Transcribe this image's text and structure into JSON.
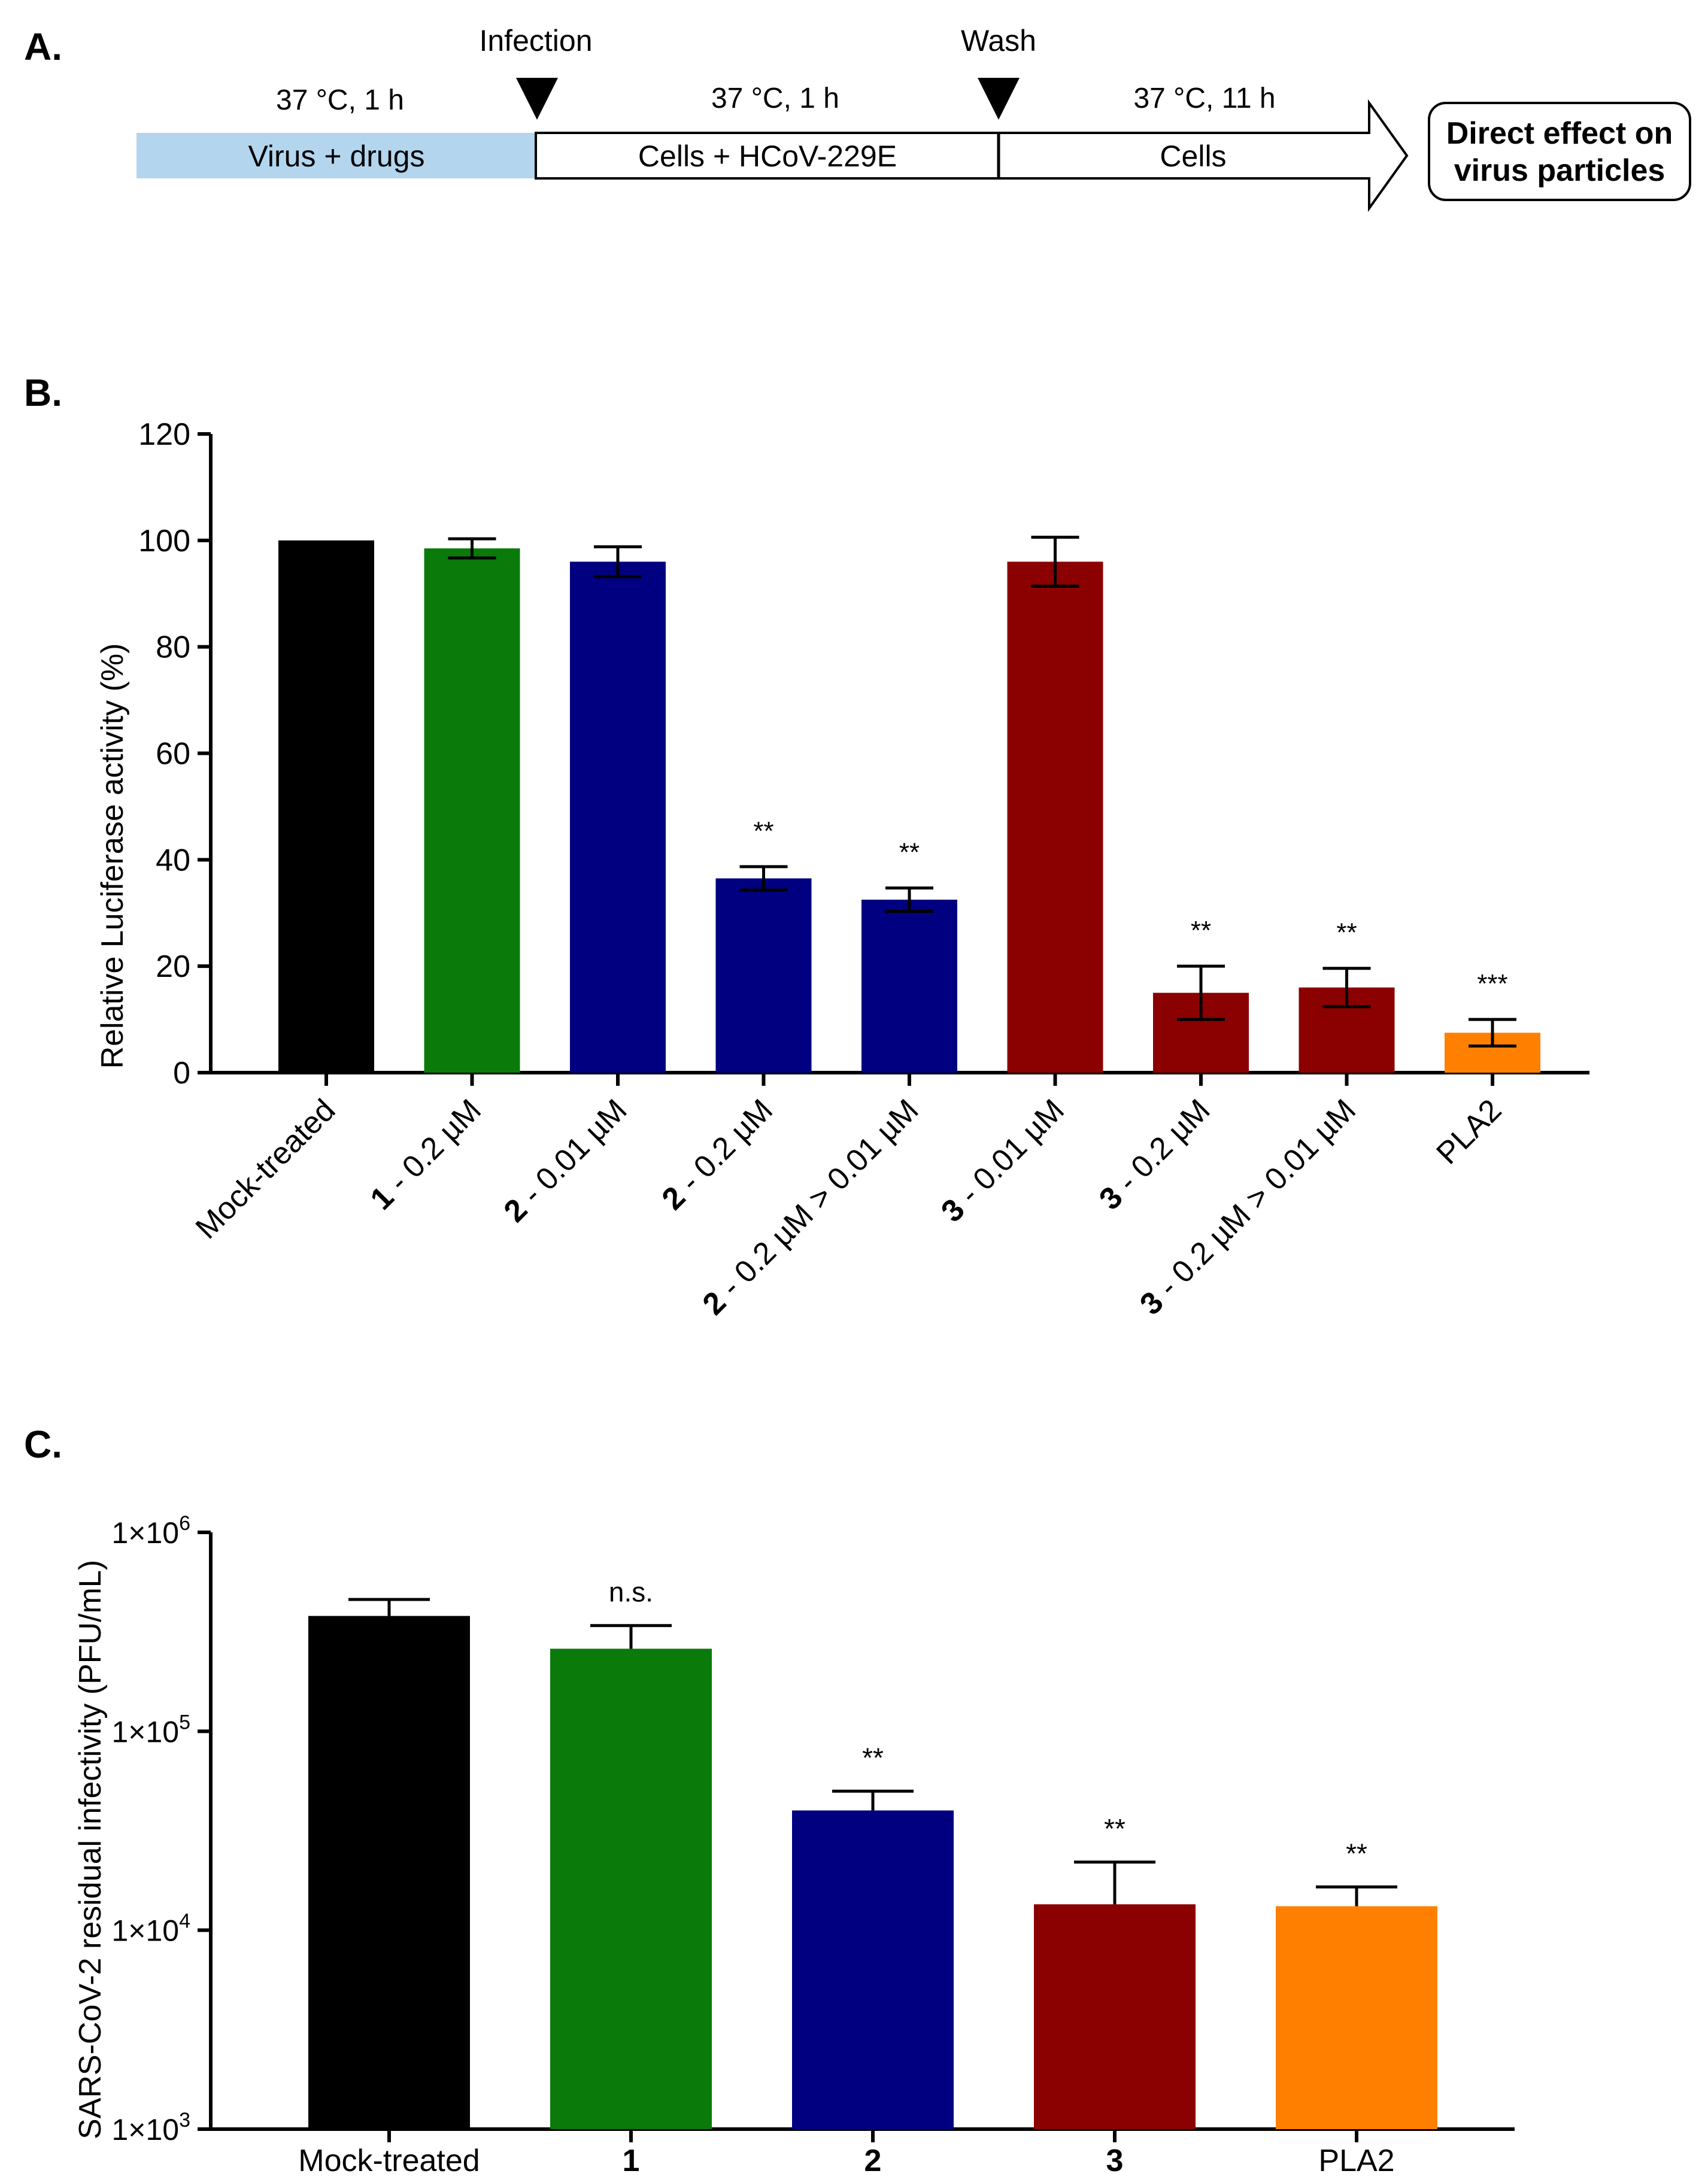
{
  "panel_a": {
    "label": "A.",
    "infection_label": "Infection",
    "wash_label": "Wash",
    "stages": [
      {
        "condition": "37 °C, 1 h",
        "label": "Virus + drugs",
        "color": "#b3d6ee"
      },
      {
        "condition": "37 °C, 1 h",
        "label": "Cells + HCoV-229E",
        "color": "#ffffff"
      },
      {
        "condition": "37 °C, 11 h",
        "label": "Cells",
        "color": "#ffffff"
      }
    ],
    "outcome_lines": [
      "Direct effect on",
      "virus particles"
    ]
  },
  "panel_b": {
    "label": "B."
  },
  "panel_c": {
    "label": "C."
  },
  "chart_data": [
    {
      "panel": "B",
      "type": "bar",
      "title": "",
      "xlabel": "",
      "ylabel": "Relative Luciferase activity (%)",
      "ylim": [
        0,
        120
      ],
      "yticks": [
        0,
        20,
        40,
        60,
        80,
        100,
        120
      ],
      "categories": [
        {
          "bold": "",
          "text": "Mock-treated"
        },
        {
          "bold": "1",
          "text": " - 0.2 µM"
        },
        {
          "bold": "2",
          "text": " - 0.01 µM"
        },
        {
          "bold": "2",
          "text": " - 0.2 µM"
        },
        {
          "bold": "2",
          "text": " - 0.2 µM > 0.01 µM"
        },
        {
          "bold": "3",
          "text": " - 0.01 µM"
        },
        {
          "bold": "3",
          "text": " - 0.2 µM"
        },
        {
          "bold": "3",
          "text": " - 0.2 µM > 0.01 µM"
        },
        {
          "bold": "",
          "text": "PLA2"
        }
      ],
      "values": [
        100,
        98.5,
        96,
        36.5,
        32.5,
        96,
        15,
        16,
        7.5
      ],
      "errors": [
        0,
        1.8,
        2.8,
        2.2,
        2.2,
        4.6,
        5,
        3.6,
        2.5
      ],
      "significance": [
        "",
        "",
        "",
        "**",
        "**",
        "",
        "**",
        "**",
        "***"
      ],
      "colors": [
        "#000000",
        "#0a7a0a",
        "#000080",
        "#000080",
        "#000080",
        "#8b0000",
        "#8b0000",
        "#8b0000",
        "#ff8000"
      ]
    },
    {
      "panel": "C",
      "type": "bar",
      "title": "",
      "xlabel": "",
      "ylabel": "SARS-CoV-2 residual infectivity (PFU/mL)",
      "yscale": "log",
      "ylim": [
        1000,
        1000000
      ],
      "yticks": [
        {
          "value": 1000,
          "mantissa": "1×10",
          "exp": "3"
        },
        {
          "value": 10000,
          "mantissa": "1×10",
          "exp": "4"
        },
        {
          "value": 100000,
          "mantissa": "1×10",
          "exp": "5"
        },
        {
          "value": 1000000,
          "mantissa": "1×10",
          "exp": "6"
        }
      ],
      "categories": [
        {
          "bold": "",
          "text": "Mock-treated"
        },
        {
          "bold": "1",
          "text": ""
        },
        {
          "bold": "2",
          "text": ""
        },
        {
          "bold": "3",
          "text": ""
        },
        {
          "bold": "",
          "text": "PLA2"
        }
      ],
      "values": [
        380000,
        260000,
        40000,
        13500,
        13200
      ],
      "error_upper": [
        460000,
        340000,
        50000,
        22000,
        16500
      ],
      "significance": [
        "",
        "n.s.",
        "**",
        "**",
        "**"
      ],
      "colors": [
        "#000000",
        "#0a7a0a",
        "#000080",
        "#8b0000",
        "#ff8000"
      ]
    }
  ]
}
